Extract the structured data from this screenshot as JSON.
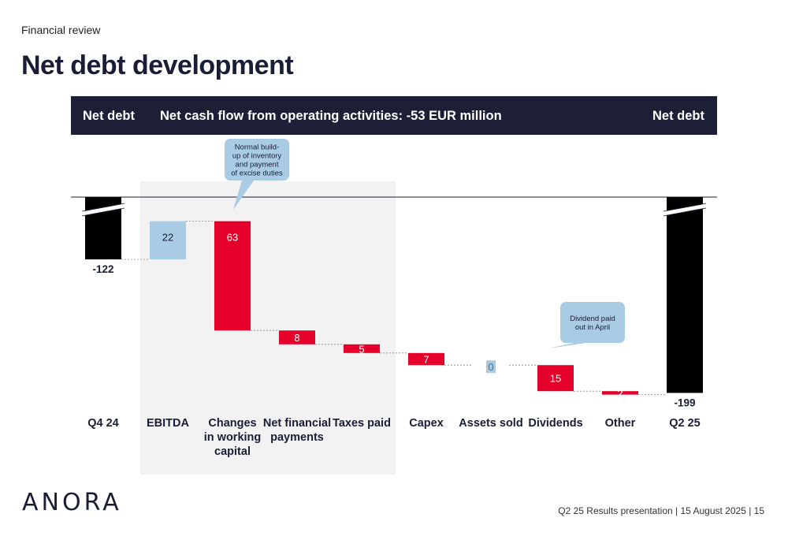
{
  "header": {
    "section": "Financial review",
    "title": "Net debt development"
  },
  "bar": {
    "left": "Net debt",
    "middle": "Net cash flow from operating activities:  -53 EUR million",
    "right": "Net debt"
  },
  "colors": {
    "dark": "#1c1f36",
    "total_bar": "#000000",
    "negative": "#e4002b",
    "positive": "#a9cbe4",
    "shade": "#f2f2f2",
    "callout": "#a9cbe4"
  },
  "chart_data": {
    "type": "waterfall",
    "categories": [
      "Q4 24",
      "EBITDA",
      "Changes in working capital",
      "Net financial payments",
      "Taxes paid",
      "Capex",
      "Assets sold",
      "Dividends",
      "Other",
      "Q2 25"
    ],
    "category_lines": [
      [
        "Q4 24"
      ],
      [
        "EBITDA"
      ],
      [
        "Changes",
        "in working",
        "capital"
      ],
      [
        "Net financial",
        "payments"
      ],
      [
        "Taxes paid"
      ],
      [
        "Capex"
      ],
      [
        "Assets sold"
      ],
      [
        "Dividends"
      ],
      [
        "Other"
      ],
      [
        "Q2 25"
      ]
    ],
    "kinds": [
      "total",
      "increase",
      "decrease",
      "decrease",
      "decrease",
      "decrease",
      "increase",
      "decrease",
      "decrease",
      "total"
    ],
    "values": [
      -122,
      22,
      63,
      8,
      5,
      7,
      0,
      15,
      2,
      -199
    ],
    "labels": [
      "-122",
      "22",
      "63",
      "8",
      "5",
      "7",
      "0",
      "15",
      "2",
      "-199"
    ],
    "axis_break": true,
    "shaded_categories": [
      "EBITDA",
      "Changes in working capital",
      "Net financial payments",
      "Taxes paid"
    ],
    "annotations": [
      {
        "target": "Changes in working capital",
        "lines": [
          "Normal build-",
          "up of inventory",
          "and payment",
          "of excise duties"
        ]
      },
      {
        "target": "Dividends",
        "lines": [
          "Dividend paid",
          "out in April"
        ]
      }
    ]
  },
  "logo": {
    "text": "ANORA"
  },
  "footer": {
    "text": "Q2 25 Results presentation  |  15 August 2025  |  15"
  }
}
